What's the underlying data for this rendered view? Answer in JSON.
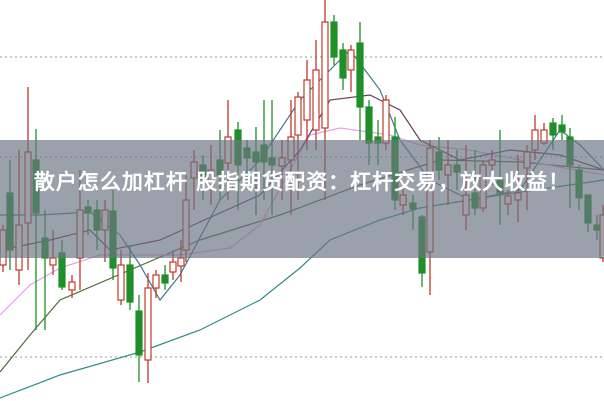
{
  "title": {
    "text": "散户怎么加杠杆 股指期货配资：杠杆交易，放大收益！"
  },
  "colors": {
    "up_candle": "#c0392b",
    "down_candle": "#1f8f2a",
    "overlay_band": "#6c7482",
    "title_text": "#ffffff",
    "gridline": "#999999"
  }
}
